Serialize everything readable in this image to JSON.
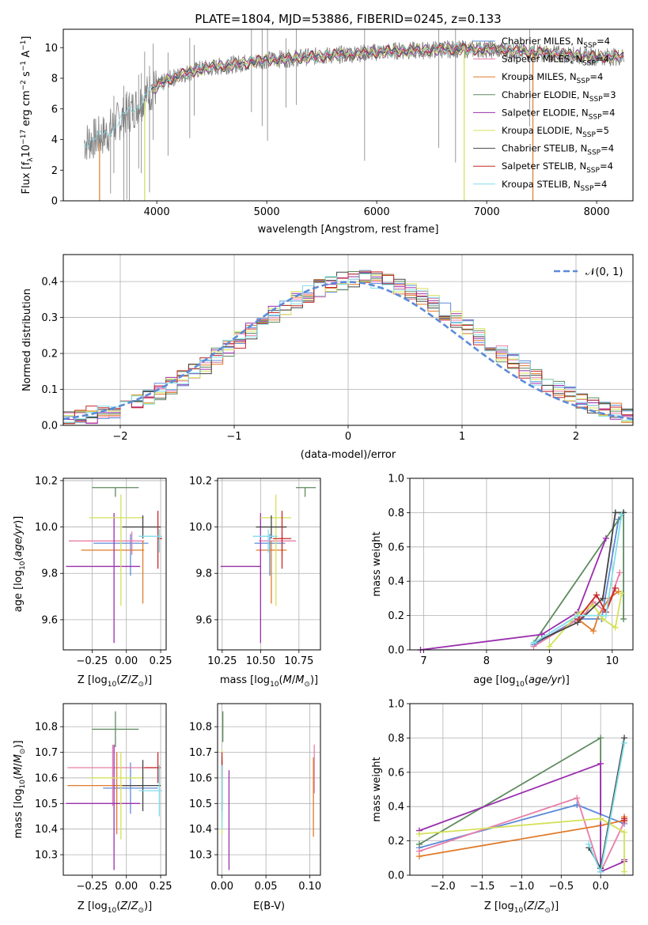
{
  "figure_title": "PLATE=1804, MJD=53886, FIBERID=0245, z=0.133",
  "models": [
    {
      "name": "Chabrier MILES",
      "nssp": "4",
      "color": "#5b8bd9"
    },
    {
      "name": "Salpeter MILES",
      "nssp": "4",
      "color": "#e87da8"
    },
    {
      "name": "Kroupa MILES",
      "nssp": "4",
      "color": "#e07b2a"
    },
    {
      "name": "Chabrier ELODIE",
      "nssp": "3",
      "color": "#5d8a5e"
    },
    {
      "name": "Salpeter ELODIE",
      "nssp": "4",
      "color": "#9b2fae"
    },
    {
      "name": "Kroupa ELODIE",
      "nssp": "5",
      "color": "#d4e157"
    },
    {
      "name": "Chabrier STELIB",
      "nssp": "4",
      "color": "#424242"
    },
    {
      "name": "Salpeter STELIB",
      "nssp": "4",
      "color": "#c62828"
    },
    {
      "name": "Kroupa STELIB",
      "nssp": "4",
      "color": "#80deea"
    }
  ],
  "chart_data": [
    {
      "id": "spectrum",
      "type": "line",
      "xlabel": "wavelength [Angstrom, rest frame]",
      "ylabel": "Flux [f_λ 10^-17 erg cm^-2 s^-1 A^-1]",
      "xlim": [
        3150,
        8330
      ],
      "ylim": [
        0,
        11.2
      ],
      "xticks": [
        4000,
        5000,
        6000,
        7000,
        8000
      ],
      "yticks": [
        0,
        2,
        4,
        6,
        8,
        10
      ],
      "legend_position": "top-right",
      "data_color": "#808080",
      "data_anchor_x": [
        3340,
        3450,
        3550,
        3650,
        3800,
        3950,
        4100,
        4250,
        4400,
        4600,
        4800,
        5000,
        5200,
        5400,
        5600,
        5800,
        6000,
        6200,
        6400,
        6600,
        6800,
        7000,
        7200,
        7400,
        7600,
        7800,
        8000,
        8200
      ],
      "data_anchor_y": [
        3.8,
        4.1,
        4.4,
        5.2,
        6.1,
        7.2,
        7.9,
        8.3,
        8.6,
        8.8,
        9.0,
        9.2,
        9.3,
        9.4,
        9.5,
        9.6,
        9.7,
        9.8,
        9.8,
        9.9,
        9.9,
        9.9,
        9.8,
        9.7,
        9.6,
        9.5,
        9.4,
        9.4
      ],
      "absorption_lines_x": [
        3580,
        3610,
        3700,
        3727,
        3750,
        3835,
        3860,
        3890,
        3934,
        3968,
        4102,
        4300,
        4340,
        4861,
        4958,
        5007,
        5175,
        5270,
        5890,
        6563,
        6717,
        7390
      ]
    },
    {
      "id": "residuals",
      "type": "histogram",
      "xlabel": "(data-model)/error",
      "ylabel": "Normed distribution",
      "xlim": [
        -2.5,
        2.5
      ],
      "ylim": [
        0,
        0.475
      ],
      "xticks": [
        -2,
        -1,
        0,
        1,
        2
      ],
      "yticks": [
        0.0,
        0.1,
        0.2,
        0.3,
        0.4
      ],
      "bin_width": 0.1,
      "reference_curve": {
        "label": "N(0,1)",
        "mean": 0,
        "sigma": 1,
        "color": "#5b8bd9",
        "dash": true
      },
      "legend_position": "top-right"
    },
    {
      "id": "age_vs_Z",
      "type": "errorbar",
      "xlabel": "Z [log10(Z/Z⊙)]",
      "ylabel": "age  [log10(age/yr)]",
      "xlim": [
        -0.46,
        0.29
      ],
      "ylim": [
        9.47,
        10.21
      ],
      "xticks": [
        -0.25,
        0.0,
        0.25
      ],
      "yticks": [
        9.6,
        9.8,
        10.0,
        10.2
      ],
      "points": [
        {
          "model": 0,
          "x": 0.03,
          "y": 9.93,
          "xerr": [
            0.27,
            0.13
          ],
          "yerr": [
            0.14,
            0.04
          ]
        },
        {
          "model": 1,
          "x": 0.04,
          "y": 9.94,
          "xerr": [
            0.46,
            0.09
          ],
          "yerr": [
            0.06,
            0.04
          ]
        },
        {
          "model": 2,
          "x": 0.12,
          "y": 9.9,
          "xerr": [
            0.45,
            0.01
          ],
          "yerr": [
            0.23,
            0.04
          ]
        },
        {
          "model": 3,
          "x": -0.08,
          "y": 10.17,
          "xerr": [
            0.17,
            0.17
          ],
          "yerr": [
            0.04,
            0.0
          ]
        },
        {
          "model": 4,
          "x": -0.09,
          "y": 9.83,
          "xerr": [
            0.35,
            0.19
          ],
          "yerr": [
            0.33,
            0.23
          ]
        },
        {
          "model": 5,
          "x": -0.04,
          "y": 10.04,
          "xerr": [
            0.23,
            0.16
          ],
          "yerr": [
            0.38,
            0.1
          ]
        },
        {
          "model": 6,
          "x": 0.12,
          "y": 10.0,
          "xerr": [
            0.15,
            0.13
          ],
          "yerr": [
            0.05,
            0.05
          ]
        },
        {
          "model": 7,
          "x": 0.23,
          "y": 9.95,
          "xerr": [
            0.0,
            0.03
          ],
          "yerr": [
            0.13,
            0.12
          ]
        },
        {
          "model": 8,
          "x": 0.24,
          "y": 9.96,
          "xerr": [
            0.15,
            0.02
          ],
          "yerr": [
            0.07,
            0.03
          ]
        }
      ]
    },
    {
      "id": "age_vs_mass",
      "type": "errorbar",
      "xlabel": "mass [log10(M/M⊙)]",
      "ylabel": "",
      "xlim": [
        10.22,
        10.89
      ],
      "ylim": [
        9.47,
        10.21
      ],
      "xticks": [
        10.25,
        10.5,
        10.75
      ],
      "yticks": [
        9.6,
        9.8,
        10.0,
        10.2
      ],
      "points": [
        {
          "model": 0,
          "x": 10.56,
          "y": 9.93,
          "xerr": [
            0.1,
            0.1
          ],
          "yerr": [
            0.14,
            0.04
          ]
        },
        {
          "model": 1,
          "x": 10.64,
          "y": 9.94,
          "xerr": [
            0.15,
            0.09
          ],
          "yerr": [
            0.06,
            0.04
          ]
        },
        {
          "model": 2,
          "x": 10.57,
          "y": 9.9,
          "xerr": [
            0.1,
            0.1
          ],
          "yerr": [
            0.23,
            0.04
          ]
        },
        {
          "model": 3,
          "x": 10.79,
          "y": 10.17,
          "xerr": [
            0.06,
            0.07
          ],
          "yerr": [
            0.04,
            0.0
          ]
        },
        {
          "model": 4,
          "x": 10.5,
          "y": 9.83,
          "xerr": [
            0.26,
            0.0
          ],
          "yerr": [
            0.33,
            0.23
          ]
        },
        {
          "model": 5,
          "x": 10.6,
          "y": 10.04,
          "xerr": [
            0.1,
            0.1
          ],
          "yerr": [
            0.38,
            0.1
          ]
        },
        {
          "model": 6,
          "x": 10.57,
          "y": 10.0,
          "xerr": [
            0.1,
            0.1
          ],
          "yerr": [
            0.05,
            0.05
          ]
        },
        {
          "model": 7,
          "x": 10.64,
          "y": 9.95,
          "xerr": [
            0.06,
            0.06
          ],
          "yerr": [
            0.13,
            0.12
          ]
        },
        {
          "model": 8,
          "x": 10.55,
          "y": 9.96,
          "xerr": [
            0.1,
            0.06
          ],
          "yerr": [
            0.07,
            0.03
          ]
        }
      ]
    },
    {
      "id": "massweight_vs_age",
      "type": "line",
      "xlabel": "age  [log10(age/yr)]",
      "ylabel": "mass weight",
      "xlim": [
        6.78,
        10.33
      ],
      "ylim": [
        0,
        1.0
      ],
      "xticks": [
        7,
        8,
        9,
        10
      ],
      "yticks": [
        0.0,
        0.2,
        0.4,
        0.6,
        0.8,
        1.0
      ],
      "series": [
        {
          "model": 0,
          "x": [
            8.75,
            9.45,
            9.83,
            10.1,
            10.18
          ],
          "y": [
            0.03,
            0.18,
            0.18,
            0.76,
            0.8
          ]
        },
        {
          "model": 1,
          "x": [
            8.75,
            9.55,
            9.7,
            9.9,
            10.12
          ],
          "y": [
            0.02,
            0.2,
            0.28,
            0.22,
            0.45
          ]
        },
        {
          "model": 2,
          "x": [
            9.45,
            9.7,
            9.78,
            9.95,
            10.1
          ],
          "y": [
            0.18,
            0.11,
            0.2,
            0.3,
            0.34
          ]
        },
        {
          "model": 3,
          "x": [
            8.75,
            10.18,
            10.18
          ],
          "y": [
            0.04,
            0.8,
            0.18
          ]
        },
        {
          "model": 4,
          "x": [
            6.95,
            8.88,
            9.45,
            9.9
          ],
          "y": [
            0.0,
            0.09,
            0.22,
            0.65
          ]
        },
        {
          "model": 5,
          "x": [
            9.0,
            9.45,
            9.7,
            9.85,
            10.05,
            10.15
          ],
          "y": [
            0.02,
            0.21,
            0.26,
            0.18,
            0.13,
            0.33
          ]
        },
        {
          "model": 6,
          "x": [
            8.75,
            9.45,
            9.85,
            10.05,
            10.18
          ],
          "y": [
            0.04,
            0.16,
            0.3,
            0.8,
            0.8
          ]
        },
        {
          "model": 7,
          "x": [
            9.45,
            9.75,
            9.9,
            10.05
          ],
          "y": [
            0.18,
            0.32,
            0.22,
            0.36
          ]
        },
        {
          "model": 8,
          "x": [
            8.75,
            9.45,
            9.9,
            10.15
          ],
          "y": [
            0.04,
            0.2,
            0.2,
            0.79
          ]
        }
      ]
    },
    {
      "id": "mass_vs_Z",
      "type": "errorbar",
      "xlabel": "Z [log10(Z/Z⊙)]",
      "ylabel": "mass [log10(M/M⊙)]",
      "xlim": [
        -0.46,
        0.29
      ],
      "ylim": [
        10.22,
        10.89
      ],
      "xticks": [
        -0.25,
        0.0,
        0.25
      ],
      "yticks": [
        10.3,
        10.4,
        10.5,
        10.6,
        10.7,
        10.8
      ],
      "points": [
        {
          "model": 0,
          "x": 0.03,
          "y": 10.56,
          "xerr": [
            0.2,
            0.2
          ],
          "yerr": [
            0.1,
            0.1
          ]
        },
        {
          "model": 1,
          "x": -0.1,
          "y": 10.64,
          "xerr": [
            0.33,
            0.33
          ],
          "yerr": [
            0.15,
            0.09
          ]
        },
        {
          "model": 2,
          "x": -0.07,
          "y": 10.57,
          "xerr": [
            0.36,
            0.19
          ],
          "yerr": [
            0.19,
            0.13
          ]
        },
        {
          "model": 3,
          "x": -0.08,
          "y": 10.79,
          "xerr": [
            0.17,
            0.17
          ],
          "yerr": [
            0.07,
            0.07
          ]
        },
        {
          "model": 4,
          "x": -0.09,
          "y": 10.5,
          "xerr": [
            0.35,
            0.19
          ],
          "yerr": [
            0.26,
            0.23
          ]
        },
        {
          "model": 5,
          "x": -0.04,
          "y": 10.6,
          "xerr": [
            0.23,
            0.16
          ],
          "yerr": [
            0.24,
            0.1
          ]
        },
        {
          "model": 6,
          "x": 0.12,
          "y": 10.57,
          "xerr": [
            0.15,
            0.13
          ],
          "yerr": [
            0.1,
            0.1
          ]
        },
        {
          "model": 7,
          "x": 0.23,
          "y": 10.64,
          "xerr": [
            0.1,
            0.02
          ],
          "yerr": [
            0.06,
            0.06
          ]
        },
        {
          "model": 8,
          "x": 0.24,
          "y": 10.55,
          "xerr": [
            0.15,
            0.02
          ],
          "yerr": [
            0.1,
            0.1
          ]
        }
      ]
    },
    {
      "id": "mass_vs_ebv",
      "type": "errorbar",
      "xlabel": "E(B-V)",
      "ylabel": "",
      "xlim": [
        -0.005,
        0.112
      ],
      "ylim": [
        10.22,
        10.89
      ],
      "xticks": [
        0.0,
        0.05,
        0.1
      ],
      "yticks": [
        10.3,
        10.4,
        10.5,
        10.6,
        10.7,
        10.8
      ],
      "points": [
        {
          "model": 0,
          "x": 0.0,
          "y": 10.56,
          "xerr": [
            0,
            0
          ],
          "yerr": [
            0.12,
            0.12
          ]
        },
        {
          "model": 1,
          "x": 0.105,
          "y": 10.64,
          "xerr": [
            0,
            0
          ],
          "yerr": [
            0.1,
            0.09
          ]
        },
        {
          "model": 2,
          "x": 0.104,
          "y": 10.57,
          "xerr": [
            0,
            0
          ],
          "yerr": [
            0.2,
            0.11
          ]
        },
        {
          "model": 3,
          "x": 0.001,
          "y": 10.79,
          "xerr": [
            0,
            0
          ],
          "yerr": [
            0.05,
            0.07
          ]
        },
        {
          "model": 4,
          "x": 0.008,
          "y": 10.5,
          "xerr": [
            0,
            0
          ],
          "yerr": [
            0.26,
            0.13
          ]
        },
        {
          "model": 5,
          "x": 0.0,
          "y": 10.6,
          "xerr": [
            0,
            0
          ],
          "yerr": [
            0.22,
            0.11
          ]
        },
        {
          "model": 6,
          "x": 0.0,
          "y": 10.57,
          "xerr": [
            0,
            0
          ],
          "yerr": [
            0.1,
            0.1
          ]
        },
        {
          "model": 7,
          "x": 0.0,
          "y": 10.64,
          "xerr": [
            0,
            0
          ],
          "yerr": [
            0.04,
            0.06
          ]
        },
        {
          "model": 8,
          "x": 0.0,
          "y": 10.55,
          "xerr": [
            0,
            0
          ],
          "yerr": [
            0.15,
            0.1
          ]
        }
      ]
    },
    {
      "id": "massweight_vs_Z",
      "type": "line",
      "xlabel": "Z [log10(Z/Z⊙)]",
      "ylabel": "mass weight",
      "xlim": [
        -2.42,
        0.41
      ],
      "ylim": [
        0,
        1.0
      ],
      "xticks": [
        -2.0,
        -1.5,
        -1.0,
        -0.5,
        0.0
      ],
      "yticks": [
        0.0,
        0.2,
        0.4,
        0.6,
        0.8,
        1.0
      ],
      "series": [
        {
          "model": 0,
          "x": [
            -2.3,
            -0.3,
            0.3
          ],
          "y": [
            0.16,
            0.41,
            0.3
          ]
        },
        {
          "model": 1,
          "x": [
            -2.3,
            -0.3,
            0.0,
            0.3
          ],
          "y": [
            0.14,
            0.45,
            0.02,
            0.31
          ]
        },
        {
          "model": 2,
          "x": [
            -2.3,
            0.0,
            0.3,
            0.3
          ],
          "y": [
            0.11,
            0.29,
            0.32,
            0.34
          ]
        },
        {
          "model": 3,
          "x": [
            -2.3,
            0.0,
            0.0
          ],
          "y": [
            0.18,
            0.8,
            0.04
          ]
        },
        {
          "model": 4,
          "x": [
            -2.3,
            0.0,
            0.0,
            0.3,
            0.3
          ],
          "y": [
            0.26,
            0.65,
            0.02,
            0.08,
            0.09
          ]
        },
        {
          "model": 5,
          "x": [
            -2.3,
            0.0,
            0.3,
            0.3
          ],
          "y": [
            0.24,
            0.33,
            0.25,
            0.02
          ]
        },
        {
          "model": 6,
          "x": [
            -0.15,
            0.0,
            0.3
          ],
          "y": [
            0.16,
            0.04,
            0.8
          ]
        },
        {
          "model": 7,
          "x": [
            0.3,
            0.3
          ],
          "y": [
            0.32,
            0.33
          ]
        },
        {
          "model": 8,
          "x": [
            -0.15,
            0.0,
            0.3
          ],
          "y": [
            0.18,
            0.02,
            0.77
          ]
        }
      ]
    }
  ]
}
